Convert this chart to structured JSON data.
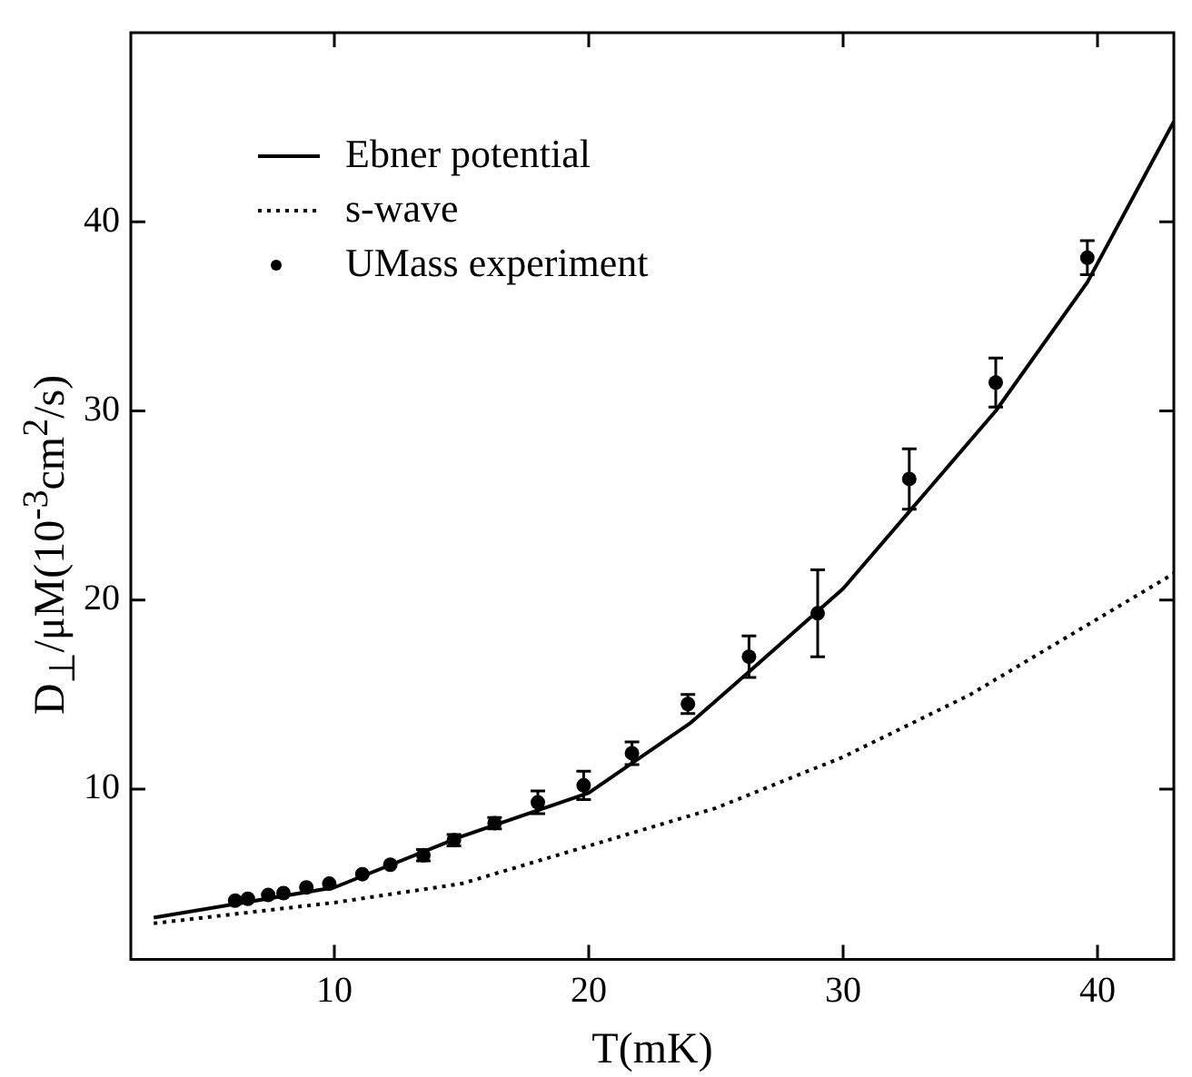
{
  "chart_data": {
    "type": "line",
    "xlabel": "T(mK)",
    "ylabel": "D$_{⊥}$/μM(10$^{-3}$cm$^{2}$/s)",
    "xlim": [
      2,
      43
    ],
    "ylim": [
      1,
      50
    ],
    "xticks": [
      10,
      20,
      30,
      40
    ],
    "yticks": [
      10,
      20,
      30,
      40
    ],
    "grid": false,
    "legend": "top left",
    "series": [
      {
        "name": "Ebner potential",
        "type": "line",
        "line_style": "solid",
        "marker": "none",
        "color": "#000000",
        "x": [
          2.9,
          10,
          15,
          20,
          24,
          26.3,
          30,
          36,
          39.6,
          43
        ],
        "values": [
          3.2,
          4.8,
          7.5,
          9.8,
          13.5,
          16.2,
          20.6,
          30.0,
          36.8,
          45.3
        ]
      },
      {
        "name": "s-wave",
        "type": "line",
        "line_style": "dotted",
        "marker": "none",
        "color": "#000000",
        "x": [
          2.9,
          10,
          15,
          20,
          25,
          30,
          35,
          40,
          43
        ],
        "values": [
          2.9,
          4.0,
          5.0,
          7.0,
          9.0,
          11.7,
          15.0,
          19.0,
          21.4
        ]
      },
      {
        "name": "UMass experiment",
        "type": "scatter",
        "marker": "circle",
        "color": "#000000",
        "x": [
          6.1,
          6.6,
          7.4,
          8.0,
          8.9,
          9.8,
          11.1,
          12.2,
          13.5,
          14.7,
          16.3,
          18.0,
          19.8,
          21.7,
          23.9,
          26.3,
          29.0,
          32.6,
          36.0,
          39.6
        ],
        "values": [
          4.1,
          4.2,
          4.4,
          4.5,
          4.8,
          5.0,
          5.5,
          6.0,
          6.5,
          7.3,
          8.2,
          9.3,
          10.2,
          11.9,
          14.5,
          17.0,
          19.3,
          26.4,
          31.5,
          38.1
        ],
        "errors": [
          null,
          null,
          null,
          null,
          null,
          null,
          null,
          null,
          0.3,
          0.3,
          0.3,
          0.6,
          0.75,
          0.6,
          0.5,
          1.1,
          2.3,
          1.6,
          1.3,
          0.9
        ]
      }
    ]
  }
}
